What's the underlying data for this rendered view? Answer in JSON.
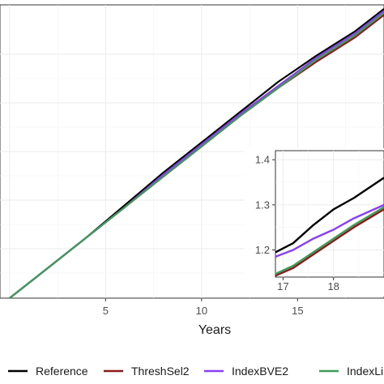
{
  "chart_data": [
    {
      "type": "line",
      "title": "",
      "xlabel": "Years",
      "ylabel": "",
      "xlim": [
        -0.5,
        19.5
      ],
      "ylim": [
        0.0,
        1.45
      ],
      "x_ticks": [
        5,
        10,
        15
      ],
      "grid": true,
      "legend_position": "bottom",
      "series": [
        {
          "name": "Reference",
          "color": "#000000",
          "x": [
            0,
            2,
            4,
            6,
            8,
            10,
            12,
            14,
            16,
            18,
            19.5
          ],
          "y": [
            0.0,
            0.15,
            0.3,
            0.46,
            0.62,
            0.77,
            0.92,
            1.07,
            1.2,
            1.32,
            1.43
          ]
        },
        {
          "name": "ThreshSel2",
          "color": "#8b1a1a",
          "x": [
            0,
            2,
            4,
            6,
            8,
            10,
            12,
            14,
            16,
            18,
            19.5
          ],
          "y": [
            0.0,
            0.15,
            0.3,
            0.45,
            0.6,
            0.75,
            0.9,
            1.04,
            1.17,
            1.29,
            1.4
          ]
        },
        {
          "name": "IndexBVE2",
          "color": "#8a3ff0",
          "x": [
            0,
            2,
            4,
            6,
            8,
            10,
            12,
            14,
            16,
            18,
            19.5
          ],
          "y": [
            0.0,
            0.15,
            0.3,
            0.45,
            0.61,
            0.76,
            0.91,
            1.05,
            1.19,
            1.31,
            1.42
          ]
        },
        {
          "name": "IndexLi",
          "color": "#3f9b5a",
          "x": [
            0,
            2,
            4,
            6,
            8,
            10,
            12,
            14,
            16,
            18,
            19.5
          ],
          "y": [
            0.0,
            0.15,
            0.3,
            0.45,
            0.6,
            0.75,
            0.9,
            1.04,
            1.18,
            1.3,
            1.41
          ]
        }
      ]
    },
    {
      "type": "line",
      "title": "",
      "xlim": [
        16.85,
        19.0
      ],
      "ylim": [
        1.14,
        1.42
      ],
      "x_ticks": [
        17,
        18
      ],
      "y_ticks": [
        1.2,
        1.3,
        1.4
      ],
      "y_tick_labels": [
        "1.2",
        "1.3",
        "1.4"
      ],
      "grid": true,
      "series": [
        {
          "name": "Reference",
          "color": "#000000",
          "x": [
            16.85,
            17.2,
            17.6,
            18.0,
            18.4,
            19.0
          ],
          "y": [
            1.195,
            1.215,
            1.255,
            1.29,
            1.315,
            1.36
          ]
        },
        {
          "name": "ThreshSel2",
          "color": "#8b1a1a",
          "x": [
            16.85,
            17.2,
            17.6,
            18.0,
            18.4,
            19.0
          ],
          "y": [
            1.143,
            1.16,
            1.19,
            1.22,
            1.25,
            1.29
          ]
        },
        {
          "name": "IndexBVE2",
          "color": "#8a3ff0",
          "x": [
            16.85,
            17.2,
            17.6,
            18.0,
            18.4,
            19.0
          ],
          "y": [
            1.185,
            1.2,
            1.225,
            1.245,
            1.27,
            1.3
          ]
        },
        {
          "name": "IndexLi",
          "color": "#3f9b5a",
          "x": [
            16.85,
            17.2,
            17.6,
            18.0,
            18.4,
            19.0
          ],
          "y": [
            1.147,
            1.165,
            1.195,
            1.225,
            1.255,
            1.295
          ]
        }
      ]
    }
  ],
  "legend": {
    "items": [
      {
        "label": "Reference",
        "color": "#000000"
      },
      {
        "label": "ThreshSel2",
        "color": "#8b1a1a"
      },
      {
        "label": "IndexBVE2",
        "color": "#8a3ff0"
      },
      {
        "label": "IndexLi",
        "color": "#3f9b5a"
      }
    ]
  }
}
